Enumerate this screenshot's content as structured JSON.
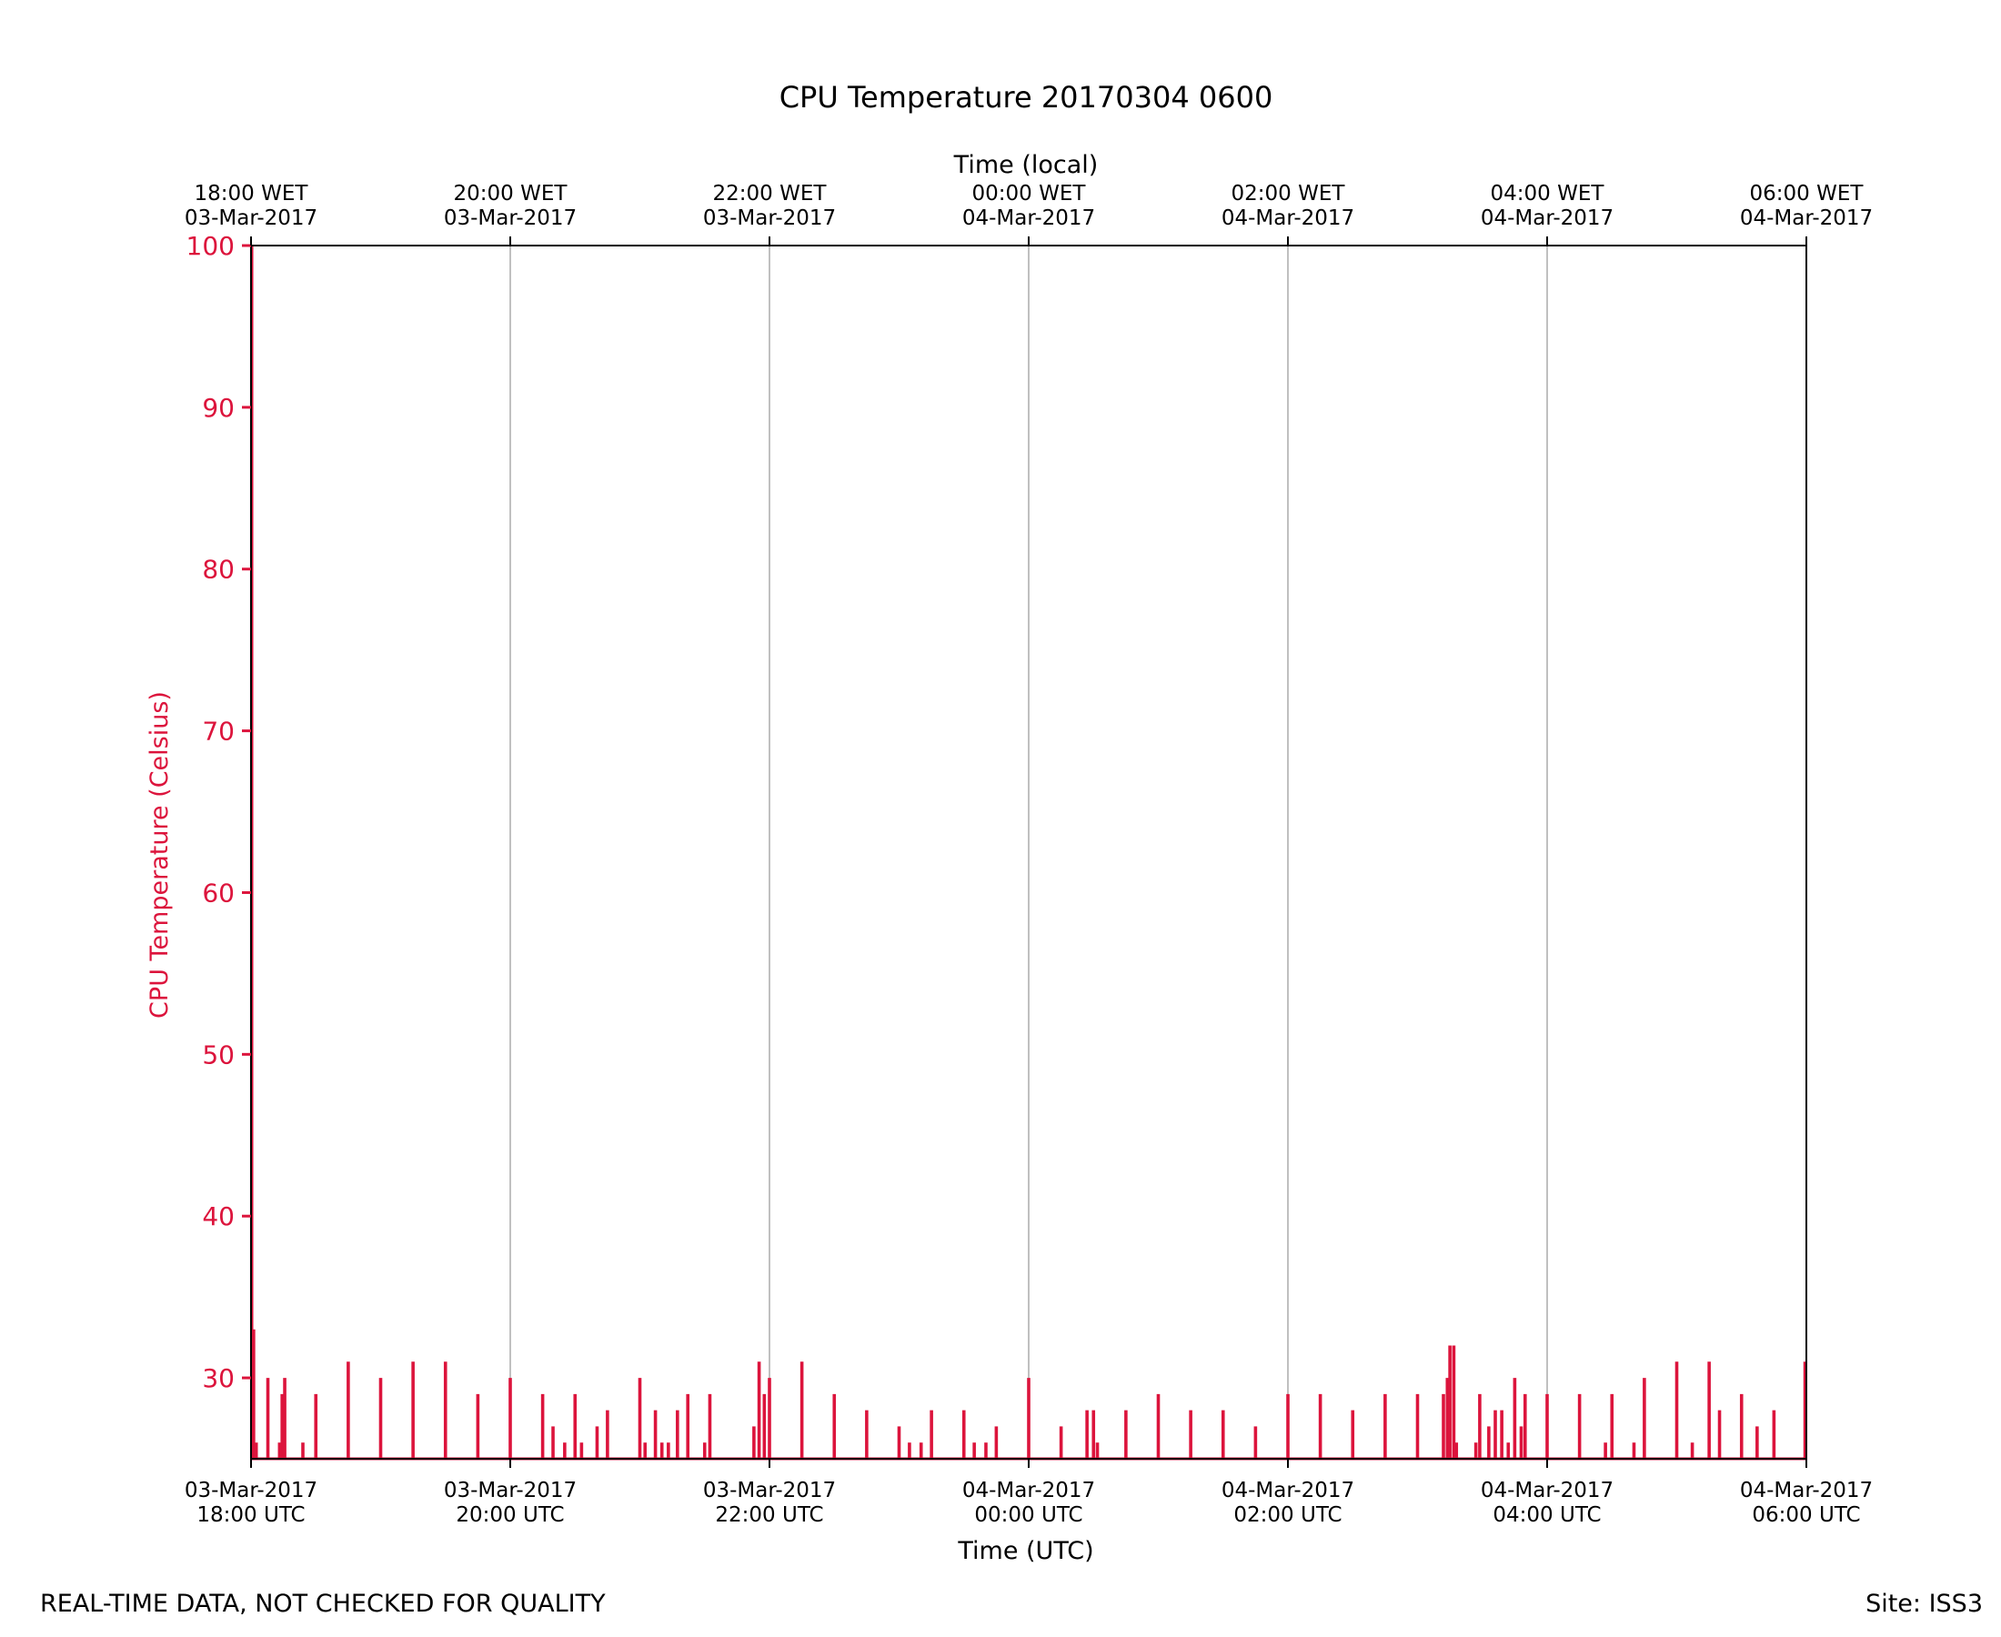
{
  "chart_data": {
    "type": "line",
    "title": "CPU Temperature 20170304 0600",
    "xlabel": "Time (UTC)",
    "x2label": "Time (local)",
    "ylabel": "CPU Temperature (Celsius)",
    "ylim": [
      25,
      100
    ],
    "xlim_hours": [
      0,
      12
    ],
    "grid": "vertical",
    "colors": {
      "series": "#dc143c",
      "axis": "#000000",
      "grid": "#b0b0b0"
    },
    "yticks": [
      30,
      40,
      50,
      60,
      70,
      80,
      90,
      100
    ],
    "xticks": [
      {
        "hour": 0,
        "utc": [
          "03-Mar-2017",
          "18:00 UTC"
        ],
        "local": [
          "18:00 WET",
          "03-Mar-2017"
        ]
      },
      {
        "hour": 2,
        "utc": [
          "03-Mar-2017",
          "20:00 UTC"
        ],
        "local": [
          "20:00 WET",
          "03-Mar-2017"
        ]
      },
      {
        "hour": 4,
        "utc": [
          "03-Mar-2017",
          "22:00 UTC"
        ],
        "local": [
          "22:00 WET",
          "03-Mar-2017"
        ]
      },
      {
        "hour": 6,
        "utc": [
          "04-Mar-2017",
          "00:00 UTC"
        ],
        "local": [
          "00:00 WET",
          "04-Mar-2017"
        ]
      },
      {
        "hour": 8,
        "utc": [
          "04-Mar-2017",
          "02:00 UTC"
        ],
        "local": [
          "02:00 WET",
          "04-Mar-2017"
        ]
      },
      {
        "hour": 10,
        "utc": [
          "04-Mar-2017",
          "04:00 UTC"
        ],
        "local": [
          "04:00 WET",
          "04-Mar-2017"
        ]
      },
      {
        "hour": 12,
        "utc": [
          "04-Mar-2017",
          "06:00 UTC"
        ],
        "local": [
          "06:00 WET",
          "04-Mar-2017"
        ]
      }
    ],
    "baseline": 25,
    "series": [
      {
        "name": "CPU Temperature",
        "spikes": [
          [
            0.005,
            100
          ],
          [
            0.02,
            33
          ],
          [
            0.04,
            26
          ],
          [
            0.13,
            30
          ],
          [
            0.22,
            26
          ],
          [
            0.24,
            29
          ],
          [
            0.26,
            30
          ],
          [
            0.4,
            26
          ],
          [
            0.5,
            29
          ],
          [
            0.75,
            31
          ],
          [
            1.0,
            30
          ],
          [
            1.25,
            31
          ],
          [
            1.5,
            31
          ],
          [
            1.75,
            29
          ],
          [
            2.0,
            30
          ],
          [
            2.25,
            29
          ],
          [
            2.33,
            27
          ],
          [
            2.42,
            26
          ],
          [
            2.5,
            29
          ],
          [
            2.55,
            26
          ],
          [
            2.67,
            27
          ],
          [
            2.75,
            28
          ],
          [
            3.0,
            30
          ],
          [
            3.04,
            26
          ],
          [
            3.12,
            28
          ],
          [
            3.17,
            26
          ],
          [
            3.22,
            26
          ],
          [
            3.29,
            28
          ],
          [
            3.37,
            29
          ],
          [
            3.5,
            26
          ],
          [
            3.54,
            29
          ],
          [
            3.88,
            27
          ],
          [
            3.92,
            31
          ],
          [
            3.96,
            29
          ],
          [
            4.0,
            30
          ],
          [
            4.25,
            31
          ],
          [
            4.5,
            29
          ],
          [
            4.75,
            28
          ],
          [
            5.0,
            27
          ],
          [
            5.08,
            26
          ],
          [
            5.17,
            26
          ],
          [
            5.25,
            28
          ],
          [
            5.5,
            28
          ],
          [
            5.58,
            26
          ],
          [
            5.67,
            26
          ],
          [
            5.75,
            27
          ],
          [
            6.0,
            30
          ],
          [
            6.25,
            27
          ],
          [
            6.45,
            28
          ],
          [
            6.5,
            28
          ],
          [
            6.53,
            26
          ],
          [
            6.75,
            28
          ],
          [
            7.0,
            29
          ],
          [
            7.25,
            28
          ],
          [
            7.5,
            28
          ],
          [
            7.75,
            27
          ],
          [
            8.0,
            29
          ],
          [
            8.25,
            29
          ],
          [
            8.5,
            28
          ],
          [
            8.75,
            29
          ],
          [
            9.0,
            29
          ],
          [
            9.2,
            29
          ],
          [
            9.23,
            30
          ],
          [
            9.25,
            32
          ],
          [
            9.28,
            32
          ],
          [
            9.3,
            26
          ],
          [
            9.45,
            26
          ],
          [
            9.48,
            29
          ],
          [
            9.55,
            27
          ],
          [
            9.6,
            28
          ],
          [
            9.65,
            28
          ],
          [
            9.7,
            26
          ],
          [
            9.75,
            30
          ],
          [
            9.8,
            27
          ],
          [
            9.83,
            29
          ],
          [
            10.0,
            29
          ],
          [
            10.25,
            29
          ],
          [
            10.45,
            26
          ],
          [
            10.5,
            29
          ],
          [
            10.67,
            26
          ],
          [
            10.75,
            30
          ],
          [
            11.0,
            31
          ],
          [
            11.12,
            26
          ],
          [
            11.25,
            31
          ],
          [
            11.33,
            28
          ],
          [
            11.5,
            29
          ],
          [
            11.62,
            27
          ],
          [
            11.75,
            28
          ],
          [
            11.99,
            31
          ]
        ]
      }
    ]
  },
  "footer": {
    "left": "REAL-TIME DATA, NOT CHECKED FOR QUALITY",
    "right": "Site: ISS3"
  }
}
